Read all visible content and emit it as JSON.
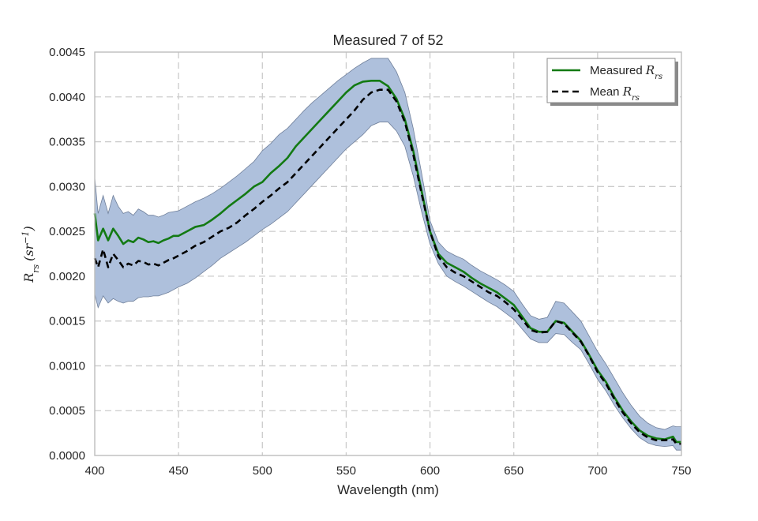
{
  "chart_data": {
    "type": "line",
    "title": "Measured 7 of 52",
    "xlabel": "Wavelength (nm)",
    "ylabel": "R_{rs} (sr^{-1})",
    "ylabel_parts": {
      "symbol": "R",
      "sub": "rs",
      "unit_open": "(sr",
      "unit_sup": "−1",
      "unit_close": ")"
    },
    "xlim": [
      400,
      750
    ],
    "ylim": [
      0,
      0.0045
    ],
    "xticks": [
      400,
      450,
      500,
      550,
      600,
      650,
      700,
      750
    ],
    "xtick_labels": [
      "400",
      "450",
      "500",
      "550",
      "600",
      "650",
      "700",
      "750"
    ],
    "yticks": [
      0,
      0.0005,
      0.001,
      0.0015,
      0.002,
      0.0025,
      0.003,
      0.0035,
      0.004,
      0.0045
    ],
    "ytick_labels": [
      "0.0000",
      "0.0005",
      "0.0010",
      "0.0015",
      "0.0020",
      "0.0025",
      "0.0030",
      "0.0035",
      "0.0040",
      "0.0045"
    ],
    "grid": true,
    "legend_position": "top-right",
    "legend": [
      {
        "label": "Measured ",
        "label_math": "R",
        "label_sub": "rs",
        "color": "#137a13",
        "style": "solid"
      },
      {
        "label": "Mean ",
        "label_math": "R",
        "label_sub": "rs",
        "color": "#000000",
        "style": "dashed"
      }
    ],
    "series": [
      {
        "name": "Measured R_rs",
        "color": "#137a13",
        "style": "solid",
        "x": [
          400,
          402,
          405,
          408,
          411,
          414,
          417,
          420,
          423,
          426,
          429,
          432,
          435,
          438,
          441,
          444,
          447,
          450,
          455,
          460,
          465,
          470,
          475,
          480,
          485,
          490,
          495,
          500,
          505,
          510,
          515,
          520,
          525,
          530,
          535,
          540,
          545,
          550,
          555,
          560,
          565,
          570,
          575,
          580,
          585,
          590,
          595,
          600,
          605,
          610,
          615,
          620,
          625,
          630,
          635,
          640,
          645,
          650,
          655,
          660,
          665,
          670,
          675,
          680,
          685,
          690,
          695,
          700,
          705,
          710,
          715,
          720,
          725,
          730,
          735,
          740,
          745,
          747,
          750
        ],
        "y": [
          0.0027,
          0.0024,
          0.00253,
          0.0024,
          0.00253,
          0.00245,
          0.00236,
          0.0024,
          0.00238,
          0.00243,
          0.00241,
          0.00238,
          0.00239,
          0.00237,
          0.0024,
          0.00242,
          0.00245,
          0.00245,
          0.0025,
          0.00255,
          0.00257,
          0.00263,
          0.0027,
          0.00278,
          0.00285,
          0.00292,
          0.003,
          0.00305,
          0.00315,
          0.00323,
          0.00332,
          0.00345,
          0.00355,
          0.00365,
          0.00375,
          0.00385,
          0.00395,
          0.00405,
          0.00413,
          0.00417,
          0.00418,
          0.00418,
          0.00412,
          0.00398,
          0.00375,
          0.0034,
          0.00295,
          0.0025,
          0.00225,
          0.00215,
          0.0021,
          0.00205,
          0.00198,
          0.00192,
          0.00187,
          0.00182,
          0.00175,
          0.00168,
          0.00155,
          0.00142,
          0.00138,
          0.00138,
          0.0015,
          0.00148,
          0.00138,
          0.00128,
          0.00112,
          0.00095,
          0.00082,
          0.00065,
          0.0005,
          0.00038,
          0.00028,
          0.00022,
          0.00019,
          0.00018,
          0.00021,
          0.00015,
          0.00015
        ]
      },
      {
        "name": "Mean R_rs",
        "color": "#000000",
        "style": "dashed",
        "x": [
          400,
          402,
          405,
          408,
          411,
          414,
          417,
          420,
          423,
          426,
          429,
          432,
          435,
          438,
          441,
          444,
          447,
          450,
          455,
          460,
          465,
          470,
          475,
          480,
          485,
          490,
          495,
          500,
          505,
          510,
          515,
          520,
          525,
          530,
          535,
          540,
          545,
          550,
          555,
          560,
          565,
          570,
          575,
          580,
          585,
          590,
          595,
          600,
          605,
          610,
          615,
          620,
          625,
          630,
          635,
          640,
          645,
          650,
          655,
          660,
          665,
          670,
          675,
          680,
          685,
          690,
          695,
          700,
          705,
          710,
          715,
          720,
          725,
          730,
          735,
          740,
          745,
          747,
          750
        ],
        "y": [
          0.0022,
          0.0021,
          0.0023,
          0.0021,
          0.00225,
          0.00218,
          0.0021,
          0.00214,
          0.00212,
          0.00217,
          0.00216,
          0.00213,
          0.00214,
          0.00212,
          0.00215,
          0.00218,
          0.0022,
          0.00223,
          0.00228,
          0.00234,
          0.00238,
          0.00244,
          0.0025,
          0.00254,
          0.0026,
          0.00268,
          0.00275,
          0.00283,
          0.0029,
          0.00298,
          0.00305,
          0.00315,
          0.00325,
          0.00335,
          0.00345,
          0.00355,
          0.00365,
          0.00375,
          0.00385,
          0.00397,
          0.00405,
          0.00408,
          0.00408,
          0.00395,
          0.00372,
          0.00336,
          0.00292,
          0.0025,
          0.00222,
          0.0021,
          0.00204,
          0.002,
          0.00194,
          0.00188,
          0.00182,
          0.00178,
          0.00171,
          0.00163,
          0.00152,
          0.0014,
          0.00137,
          0.00138,
          0.0015,
          0.00147,
          0.00137,
          0.00127,
          0.00111,
          0.00093,
          0.0008,
          0.00063,
          0.00048,
          0.00036,
          0.00026,
          0.0002,
          0.00017,
          0.00017,
          0.00018,
          0.00013,
          0.00013
        ]
      }
    ],
    "band": {
      "color": "#aec0dc",
      "edge_color": "#6f7f9a",
      "x": [
        400,
        402,
        405,
        408,
        411,
        414,
        417,
        420,
        423,
        426,
        429,
        432,
        435,
        438,
        441,
        444,
        447,
        450,
        455,
        460,
        465,
        470,
        475,
        480,
        485,
        490,
        495,
        500,
        505,
        510,
        515,
        520,
        525,
        530,
        535,
        540,
        545,
        550,
        555,
        560,
        565,
        570,
        575,
        580,
        585,
        590,
        595,
        600,
        605,
        610,
        615,
        620,
        625,
        630,
        635,
        640,
        645,
        650,
        655,
        660,
        665,
        670,
        675,
        680,
        685,
        690,
        695,
        700,
        705,
        710,
        715,
        720,
        725,
        730,
        735,
        740,
        745,
        747,
        750
      ],
      "upper": [
        0.0031,
        0.0027,
        0.0029,
        0.0027,
        0.0029,
        0.00278,
        0.0027,
        0.00272,
        0.00268,
        0.00275,
        0.00272,
        0.00268,
        0.00268,
        0.00266,
        0.00268,
        0.00271,
        0.00272,
        0.00273,
        0.00278,
        0.00283,
        0.00287,
        0.00292,
        0.00298,
        0.00305,
        0.00312,
        0.0032,
        0.00328,
        0.0034,
        0.00348,
        0.00358,
        0.00365,
        0.00375,
        0.00385,
        0.00394,
        0.00402,
        0.0041,
        0.00418,
        0.00425,
        0.00432,
        0.00438,
        0.00443,
        0.00443,
        0.00443,
        0.00428,
        0.00405,
        0.00365,
        0.00315,
        0.00262,
        0.00238,
        0.00228,
        0.00223,
        0.00219,
        0.00212,
        0.00206,
        0.00201,
        0.00196,
        0.0019,
        0.00183,
        0.00169,
        0.00156,
        0.00152,
        0.00154,
        0.00172,
        0.0017,
        0.0016,
        0.0015,
        0.00133,
        0.00116,
        0.00102,
        0.00086,
        0.0007,
        0.00056,
        0.00044,
        0.00036,
        0.00031,
        0.00029,
        0.00033,
        0.00032,
        0.00032
      ],
      "lower": [
        0.0018,
        0.00165,
        0.00178,
        0.0017,
        0.00175,
        0.00172,
        0.0017,
        0.00172,
        0.00172,
        0.00176,
        0.00177,
        0.00177,
        0.00178,
        0.00178,
        0.0018,
        0.00182,
        0.00185,
        0.00188,
        0.00192,
        0.00198,
        0.00205,
        0.00212,
        0.0022,
        0.00226,
        0.00232,
        0.00238,
        0.00245,
        0.00252,
        0.00258,
        0.00265,
        0.00272,
        0.00282,
        0.00292,
        0.00302,
        0.00312,
        0.00322,
        0.00332,
        0.00342,
        0.0035,
        0.00358,
        0.00368,
        0.00372,
        0.00372,
        0.00362,
        0.00345,
        0.00312,
        0.00272,
        0.00236,
        0.00214,
        0.002,
        0.00194,
        0.00189,
        0.00183,
        0.00177,
        0.00171,
        0.00166,
        0.00159,
        0.00152,
        0.00141,
        0.0013,
        0.00126,
        0.00126,
        0.00136,
        0.00135,
        0.00126,
        0.00118,
        0.00102,
        0.00085,
        0.00072,
        0.00056,
        0.00042,
        0.0003,
        0.0002,
        0.00014,
        0.00011,
        0.0001,
        0.00011,
        6e-05,
        6e-05
      ]
    }
  }
}
